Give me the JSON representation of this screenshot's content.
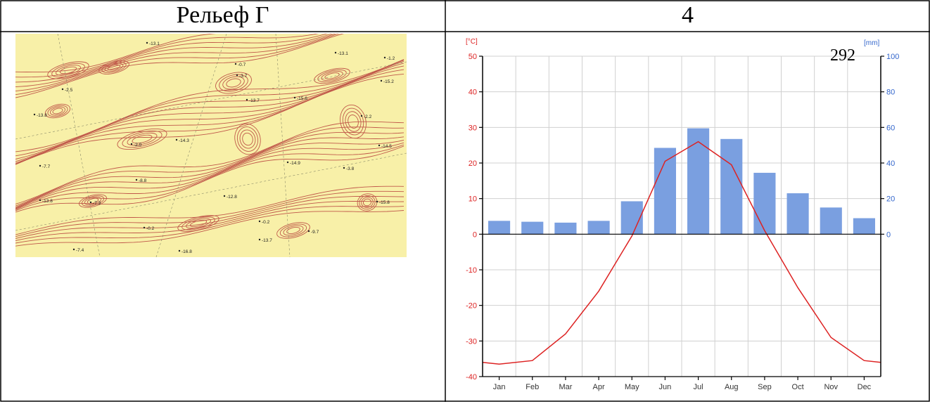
{
  "table": {
    "left_header": "Рельеф Г",
    "right_header": "4"
  },
  "map": {
    "icon": "topographic-contour-map",
    "spot_heights": [
      "-13.1",
      "-13.1",
      "-1.2",
      "-2.5",
      "-0.7",
      "-3.7",
      "-15.2",
      "-13.7",
      "-15.6",
      "-13.8",
      "-2.2",
      "-2.0",
      "-14.3",
      "-14.5",
      "-7.7",
      "-14.9",
      "-3.8",
      "-8.8",
      "-13.8",
      "-7.3",
      "-12.8",
      "-15.8",
      "-0.2",
      "-0.2",
      "-9.7",
      "-13.7",
      "-7.4",
      "-16.8"
    ],
    "colors": {
      "background": "#f8f0a8",
      "contour": "#c0584a",
      "label": "#222222"
    }
  },
  "chart_data": {
    "type": "bar+line",
    "categories": [
      "Jan",
      "Feb",
      "Mar",
      "Apr",
      "May",
      "Jun",
      "Jul",
      "Aug",
      "Sep",
      "Oct",
      "Nov",
      "Dec"
    ],
    "series": [
      {
        "axis": "right",
        "kind": "bar",
        "values": [
          7.5,
          7,
          6.5,
          7.5,
          18.5,
          48.5,
          59.5,
          53.5,
          34.5,
          23,
          15,
          9
        ],
        "color": "#7a9fe0"
      },
      {
        "axis": "left",
        "kind": "line",
        "values": [
          -36.5,
          -35.5,
          -28,
          -16,
          -0.5,
          20.5,
          26,
          19.5,
          1,
          -15,
          -29,
          -35.5
        ],
        "color": "#dd2222"
      }
    ],
    "line_edges": [
      -36,
      -36
    ],
    "left_axis": {
      "label": "[°C]",
      "ticks": [
        50,
        40,
        30,
        20,
        10,
        0,
        -10,
        -20,
        -30,
        -40
      ],
      "range": [
        -40,
        50
      ],
      "color": "#dd2222"
    },
    "right_axis": {
      "label": "[mm]",
      "ticks": [
        100,
        80,
        60,
        40,
        20,
        0
      ],
      "range": [
        -80,
        100
      ],
      "color": "#3366cc"
    },
    "annotation": "292",
    "grid": true
  }
}
